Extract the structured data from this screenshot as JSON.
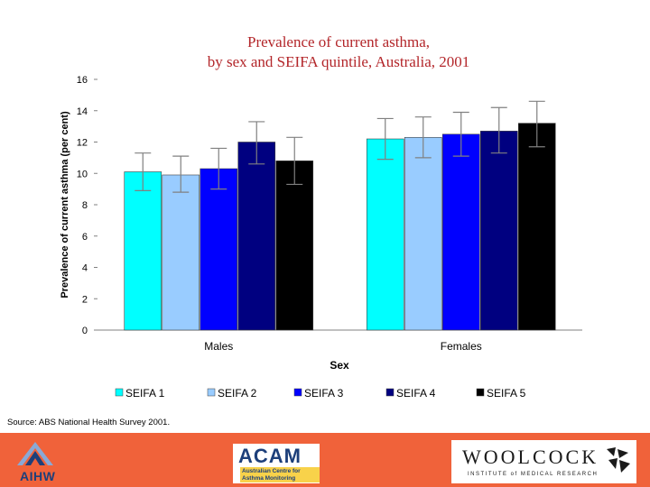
{
  "chart_data": {
    "type": "bar",
    "title_line1": "Prevalence of current asthma,",
    "title_line2": "by sex and SEIFA quintile, Australia, 2001",
    "xlabel": "Sex",
    "ylabel": "Prevalence of current asthma (per cent)",
    "ylim": [
      0,
      16
    ],
    "yticks": [
      0,
      2,
      4,
      6,
      8,
      10,
      12,
      14,
      16
    ],
    "categories": [
      "Males",
      "Females"
    ],
    "series": [
      {
        "name": "SEIFA 1",
        "color": "#00ffff",
        "values": [
          10.1,
          12.2
        ],
        "err_low": [
          8.9,
          10.9
        ],
        "err_high": [
          11.3,
          13.5
        ]
      },
      {
        "name": "SEIFA 2",
        "color": "#99ccff",
        "values": [
          9.9,
          12.3
        ],
        "err_low": [
          8.8,
          11.0
        ],
        "err_high": [
          11.1,
          13.6
        ]
      },
      {
        "name": "SEIFA 3",
        "color": "#0000ff",
        "values": [
          10.3,
          12.5
        ],
        "err_low": [
          9.0,
          11.1
        ],
        "err_high": [
          11.6,
          13.9
        ]
      },
      {
        "name": "SEIFA 4",
        "color": "#000080",
        "values": [
          12.0,
          12.7
        ],
        "err_low": [
          10.6,
          11.3
        ],
        "err_high": [
          13.3,
          14.2
        ]
      },
      {
        "name": "SEIFA 5",
        "color": "#000000",
        "values": [
          10.8,
          13.2
        ],
        "err_low": [
          9.3,
          11.7
        ],
        "err_high": [
          12.3,
          14.6
        ]
      }
    ],
    "legend_position": "bottom",
    "grid": false
  },
  "source": "Source: ABS National Health Survey 2001.",
  "footer": {
    "aihw": "AIHW",
    "acam": "ACAM",
    "acam_sub": "Australian Centre for Asthma Monitoring",
    "woolcock": "WOOLCOCK",
    "woolcock_sub": "INSTITUTE of MEDICAL RESEARCH"
  }
}
